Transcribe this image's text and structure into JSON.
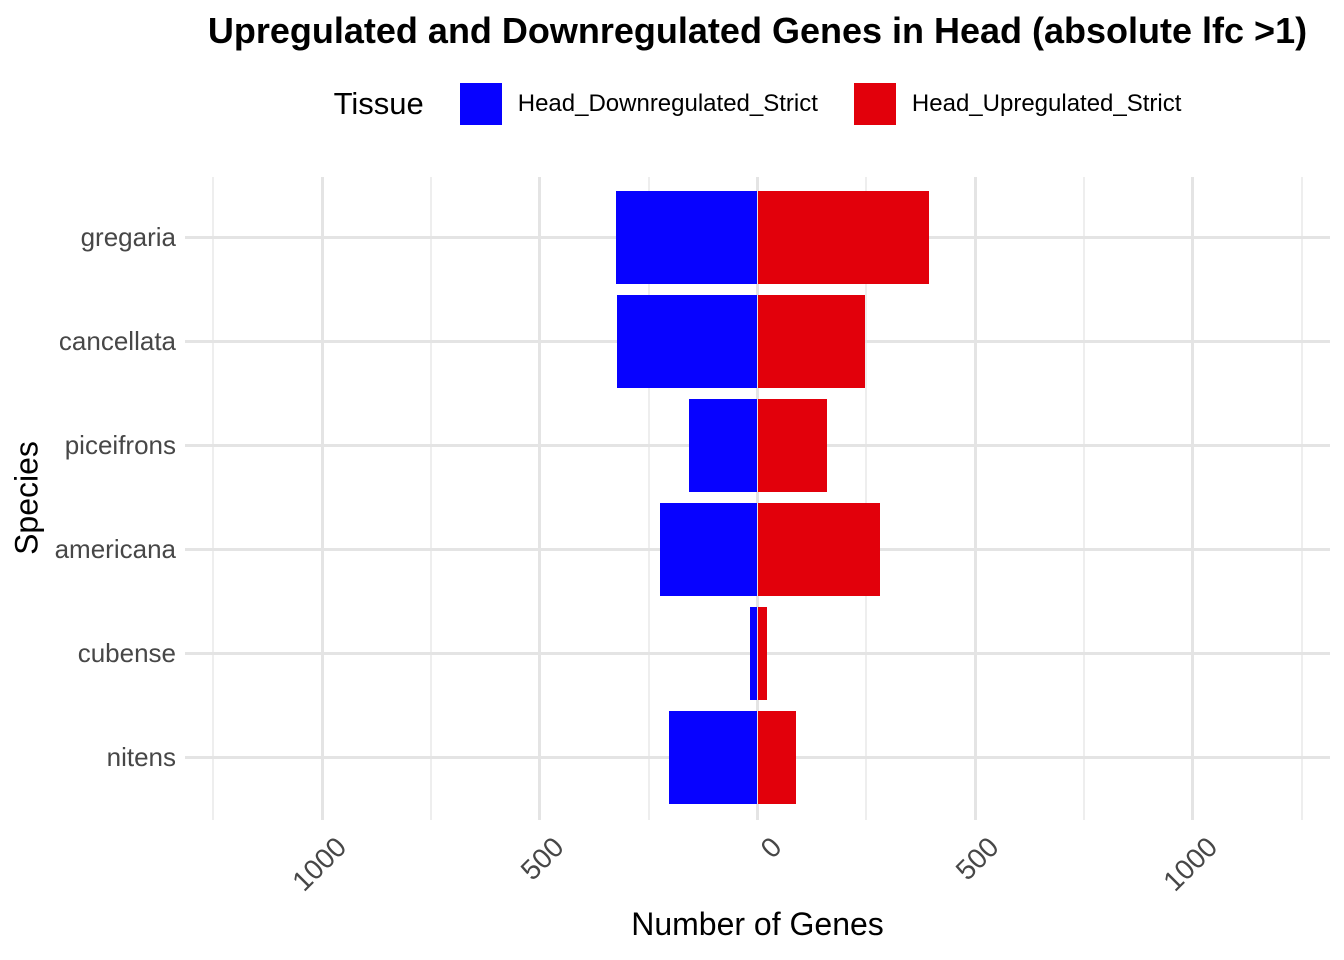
{
  "title": "Upregulated and Downregulated Genes in Head (absolute lfc >1)",
  "legend": {
    "title": "Tissue",
    "items": [
      {
        "label": "Head_Downregulated_Strict",
        "color": "#0702FF"
      },
      {
        "label": "Head_Upregulated_Strict",
        "color": "#E2000B"
      }
    ]
  },
  "axes": {
    "x_title": "Number of Genes",
    "y_title": "Species",
    "x_ticks": [
      {
        "value": -1000,
        "label": "1000"
      },
      {
        "value": -500,
        "label": "500"
      },
      {
        "value": 0,
        "label": "0"
      },
      {
        "value": 500,
        "label": "500"
      },
      {
        "value": 1000,
        "label": "1000"
      }
    ]
  },
  "chart_data": {
    "type": "bar",
    "orientation": "horizontal-diverging",
    "title": "Upregulated and Downregulated Genes in Head (absolute lfc >1)",
    "xlabel": "Number of Genes",
    "ylabel": "Species",
    "categories": [
      "gregaria",
      "cancellata",
      "piceifrons",
      "americana",
      "cubense",
      "nitens"
    ],
    "series": [
      {
        "name": "Head_Downregulated_Strict",
        "color": "#0702FF",
        "direction": "negative",
        "values": [
          325,
          323,
          158,
          223,
          17,
          204
        ]
      },
      {
        "name": "Head_Upregulated_Strict",
        "color": "#E2000B",
        "direction": "positive",
        "values": [
          395,
          248,
          159,
          281,
          21,
          88
        ]
      }
    ],
    "xlim": [
      -1315,
      1315
    ],
    "x_major_gridlines": [
      -1000,
      -500,
      0,
      500,
      1000
    ],
    "x_minor_gridlines": [
      -1250,
      -750,
      -250,
      250,
      750,
      1250
    ],
    "grid": true,
    "legend_position": "top"
  }
}
